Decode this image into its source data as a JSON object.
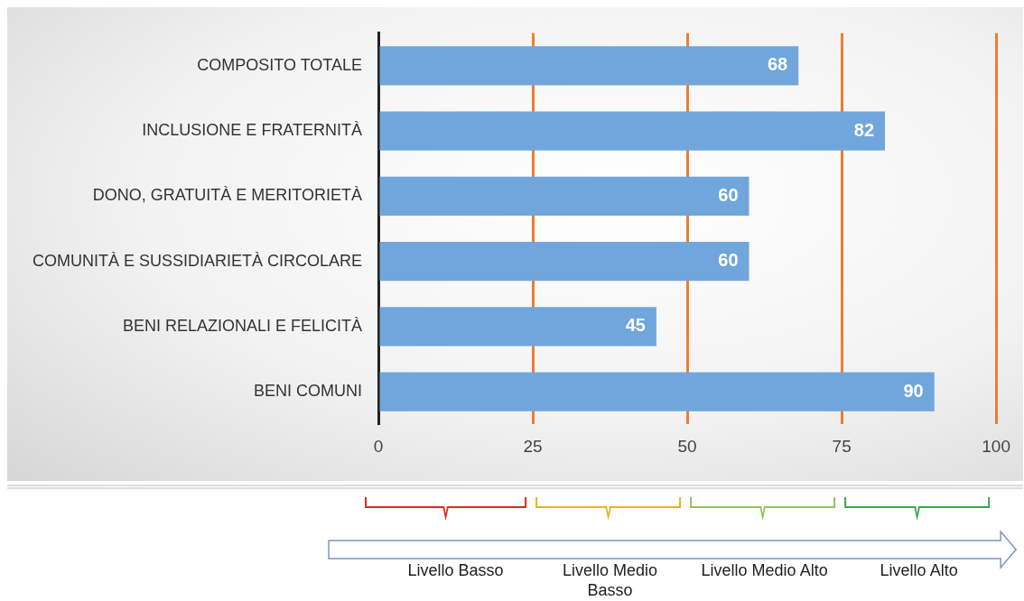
{
  "chart_data": {
    "type": "bar",
    "orientation": "horizontal",
    "categories": [
      "COMPOSITO TOTALE",
      "INCLUSIONE E FRATERNITÀ",
      "DONO, GRATUITÀ E MERITORIETÀ",
      "COMUNITÀ E SUSSIDIARIETÀ CIRCOLARE",
      "BENI RELAZIONALI E FELICITÀ",
      "BENI COMUNI"
    ],
    "values": [
      68,
      82,
      60,
      60,
      45,
      90
    ],
    "color": "#70a6db",
    "data_labels": true,
    "xlim": [
      0,
      100
    ],
    "xticks": [
      0,
      25,
      50,
      75,
      100
    ],
    "grid": "x",
    "legend": false,
    "annotations": [
      "Livello Basso",
      "Livello Medio Basso",
      "Livello Medio Alto",
      "Livello Alto"
    ]
  }
}
